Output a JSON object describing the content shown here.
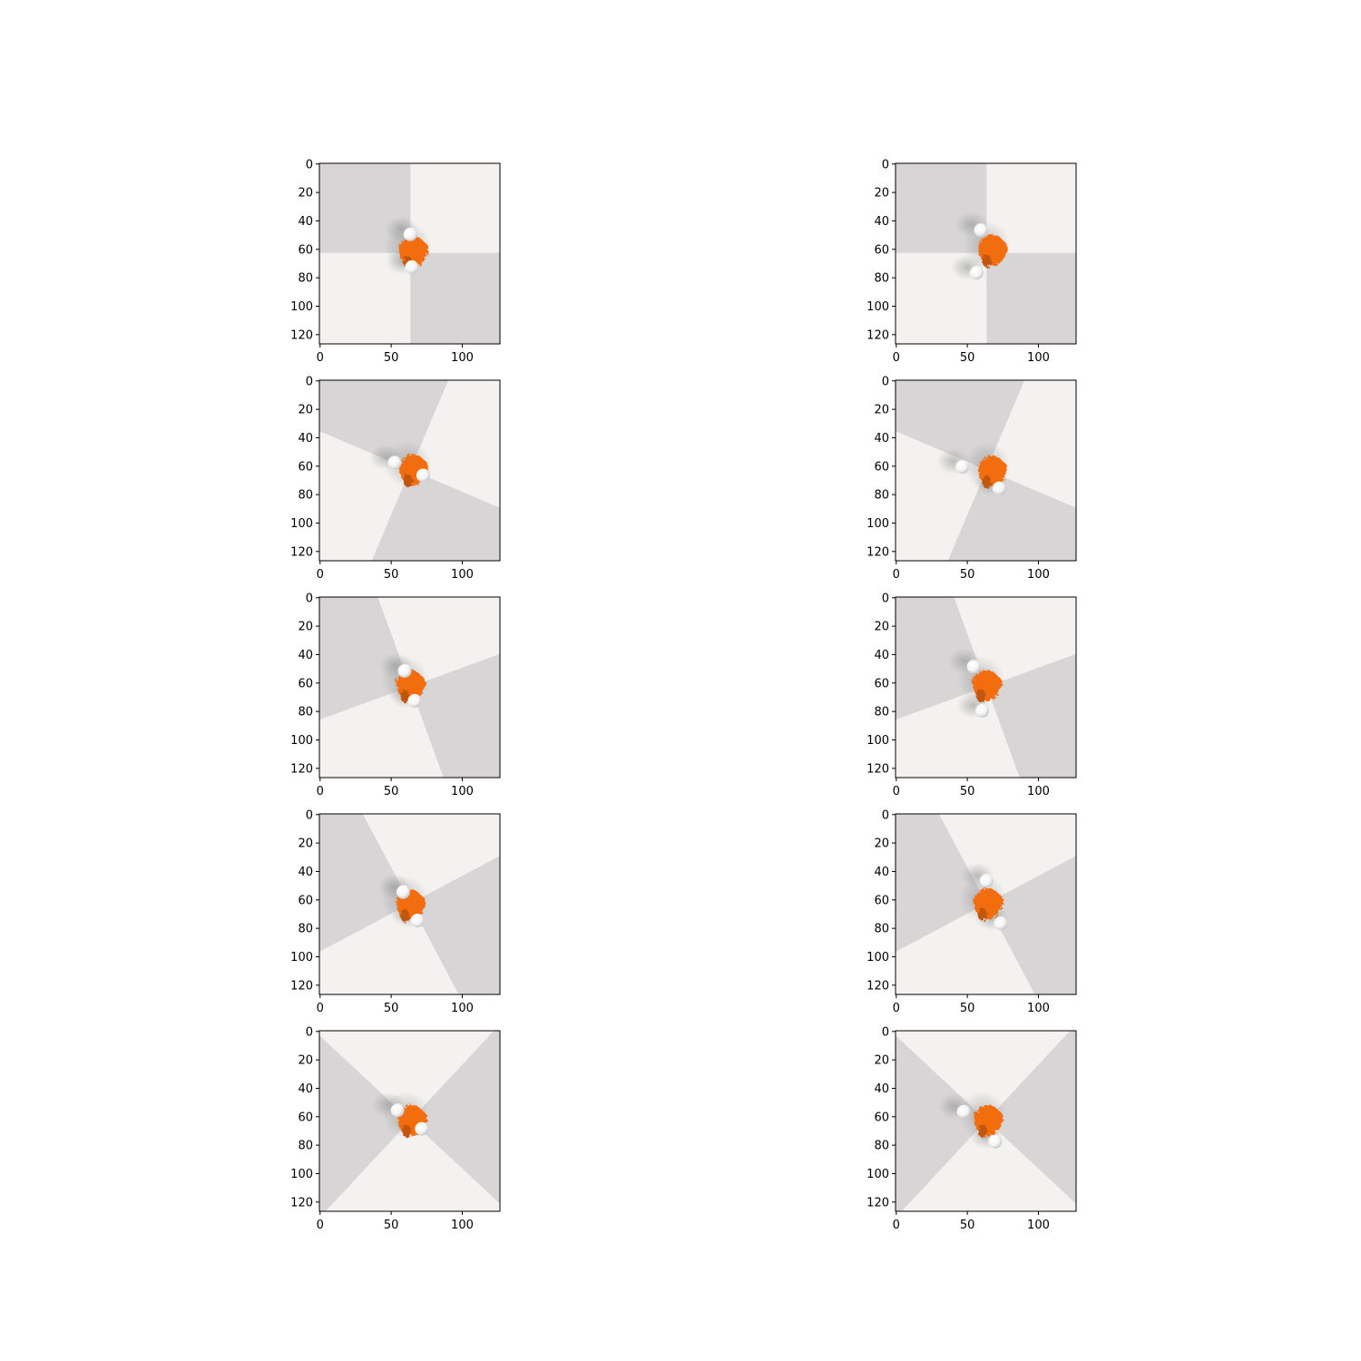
{
  "figure": {
    "layout": {
      "rows": 5,
      "cols": 2
    },
    "axes": {
      "x_ticks": [
        0,
        50,
        100
      ],
      "y_ticks": [
        0,
        20,
        40,
        60,
        80,
        100,
        120
      ],
      "xlim": [
        0,
        127
      ],
      "ylim": [
        127,
        0
      ]
    },
    "colors": {
      "background_light": "#f3f2f1",
      "background_dark": "#d7d5d6",
      "object_orange": "#f26d10",
      "object_orange_dark": "#c2570c",
      "sphere": "#ffffff",
      "shadow": "#9a9a9a"
    },
    "panels": [
      {
        "label": "row-1-left",
        "sector_angles": [
          0,
          90,
          180,
          270
        ],
        "blob": [
          66,
          62
        ],
        "spheres": [
          [
            64,
            50
          ],
          [
            65,
            73
          ]
        ]
      },
      {
        "label": "row-1-right",
        "sector_angles": [
          0,
          90,
          180,
          270
        ],
        "blob": [
          68,
          61
        ],
        "spheres": [
          [
            60,
            47
          ],
          [
            57,
            77
          ]
        ]
      },
      {
        "label": "row-2-left",
        "sector_angles": [
          23,
          113,
          203,
          293
        ],
        "blob": [
          66,
          63
        ],
        "spheres": [
          [
            53,
            58
          ],
          [
            73,
            67
          ]
        ]
      },
      {
        "label": "row-2-right",
        "sector_angles": [
          23,
          113,
          203,
          293
        ],
        "blob": [
          68,
          64
        ],
        "spheres": [
          [
            47,
            61
          ],
          [
            73,
            76
          ]
        ]
      },
      {
        "label": "row-3-left",
        "sector_angles": [
          -20,
          70,
          160,
          250
        ],
        "blob": [
          64,
          62
        ],
        "spheres": [
          [
            60,
            52
          ],
          [
            67,
            73
          ]
        ]
      },
      {
        "label": "row-3-right",
        "sector_angles": [
          -20,
          70,
          160,
          250
        ],
        "blob": [
          64,
          62
        ],
        "spheres": [
          [
            55,
            49
          ],
          [
            61,
            80
          ]
        ]
      },
      {
        "label": "row-4-left",
        "sector_angles": [
          -28,
          62,
          152,
          242
        ],
        "blob": [
          64,
          64
        ],
        "spheres": [
          [
            59,
            55
          ],
          [
            69,
            75
          ]
        ]
      },
      {
        "label": "row-4-right",
        "sector_angles": [
          -28,
          62,
          152,
          242
        ],
        "blob": [
          65,
          63
        ],
        "spheres": [
          [
            64,
            47
          ],
          [
            74,
            77
          ]
        ]
      },
      {
        "label": "row-5-left",
        "sector_angles": [
          -47,
          43,
          133,
          223
        ],
        "blob": [
          65,
          63
        ],
        "spheres": [
          [
            55,
            56
          ],
          [
            72,
            69
          ]
        ]
      },
      {
        "label": "row-5-right",
        "sector_angles": [
          -47,
          43,
          133,
          223
        ],
        "blob": [
          65,
          63
        ],
        "spheres": [
          [
            48,
            57
          ],
          [
            70,
            78
          ]
        ]
      }
    ]
  }
}
